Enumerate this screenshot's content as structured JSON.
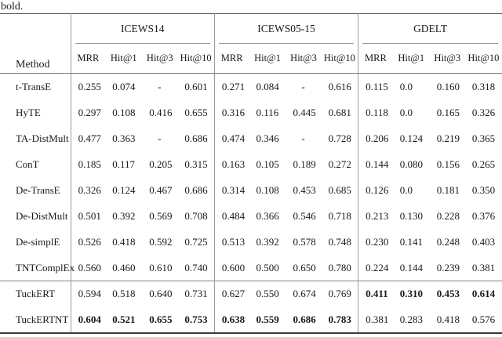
{
  "caption": "bold.",
  "table": {
    "method_header": "Method",
    "groups": [
      {
        "label": "ICEWS14",
        "metrics": [
          "MRR",
          "Hit@1",
          "Hit@3",
          "Hit@10"
        ]
      },
      {
        "label": "ICEWS05-15",
        "metrics": [
          "MRR",
          "Hit@1",
          "Hit@3",
          "Hit@10"
        ]
      },
      {
        "label": "GDELT",
        "metrics": [
          "MRR",
          "Hit@1",
          "Hit@3",
          "Hit@10"
        ]
      }
    ],
    "rows": [
      {
        "method": "t-TransE",
        "values": [
          "0.255",
          "0.074",
          "-",
          "0.601",
          "0.271",
          "0.084",
          "-",
          "0.616",
          "0.115",
          "0.0",
          "0.160",
          "0.318"
        ],
        "bold": []
      },
      {
        "method": "HyTE",
        "values": [
          "0.297",
          "0.108",
          "0.416",
          "0.655",
          "0.316",
          "0.116",
          "0.445",
          "0.681",
          "0.118",
          "0.0",
          "0.165",
          "0.326"
        ],
        "bold": []
      },
      {
        "method": "TA-DistMult",
        "values": [
          "0.477",
          "0.363",
          "-",
          "0.686",
          "0.474",
          "0.346",
          "-",
          "0.728",
          "0.206",
          "0.124",
          "0.219",
          "0.365"
        ],
        "bold": []
      },
      {
        "method": "ConT",
        "values": [
          "0.185",
          "0.117",
          "0.205",
          "0.315",
          "0.163",
          "0.105",
          "0.189",
          "0.272",
          "0.144",
          "0.080",
          "0.156",
          "0.265"
        ],
        "bold": []
      },
      {
        "method": "De-TransE",
        "values": [
          "0.326",
          "0.124",
          "0.467",
          "0.686",
          "0.314",
          "0.108",
          "0.453",
          "0.685",
          "0.126",
          "0.0",
          "0.181",
          "0.350"
        ],
        "bold": []
      },
      {
        "method": "De-DistMult",
        "values": [
          "0.501",
          "0.392",
          "0.569",
          "0.708",
          "0.484",
          "0.366",
          "0.546",
          "0.718",
          "0.213",
          "0.130",
          "0.228",
          "0.376"
        ],
        "bold": []
      },
      {
        "method": "De-simplE",
        "values": [
          "0.526",
          "0.418",
          "0.592",
          "0.725",
          "0.513",
          "0.392",
          "0.578",
          "0.748",
          "0.230",
          "0.141",
          "0.248",
          "0.403"
        ],
        "bold": []
      },
      {
        "method": "TNTComplEx",
        "values": [
          "0.560",
          "0.460",
          "0.610",
          "0.740",
          "0.600",
          "0.500",
          "0.650",
          "0.780",
          "0.224",
          "0.144",
          "0.239",
          "0.381"
        ],
        "bold": []
      },
      {
        "method": "TuckERT",
        "values": [
          "0.594",
          "0.518",
          "0.640",
          "0.731",
          "0.627",
          "0.550",
          "0.674",
          "0.769",
          "0.411",
          "0.310",
          "0.453",
          "0.614"
        ],
        "bold": [
          8,
          9,
          10,
          11
        ],
        "section_start": true
      },
      {
        "method": "TuckERTNT",
        "values": [
          "0.604",
          "0.521",
          "0.655",
          "0.753",
          "0.638",
          "0.559",
          "0.686",
          "0.783",
          "0.381",
          "0.283",
          "0.418",
          "0.576"
        ],
        "bold": [
          0,
          1,
          2,
          3,
          4,
          5,
          6,
          7
        ]
      }
    ]
  }
}
